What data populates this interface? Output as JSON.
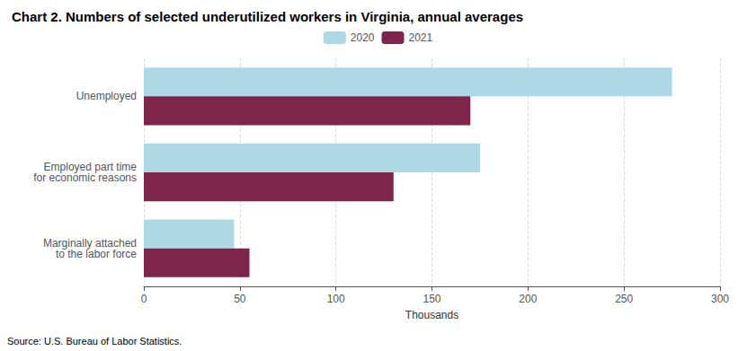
{
  "chart_data": {
    "type": "bar",
    "title": "Chart 2. Numbers of selected underutilized workers in Virginia, annual averages",
    "categories": [
      "Unemployed",
      "Employed part time\nfor economic reasons",
      "Marginally attached\nto the labor force"
    ],
    "series": [
      {
        "name": "2020",
        "color": "#ADD8E6",
        "values": [
          275,
          175,
          47
        ]
      },
      {
        "name": "2021",
        "color": "#80254A",
        "values": [
          170,
          130,
          55
        ]
      }
    ],
    "orientation": "horizontal",
    "xlabel": "Thousands",
    "xlim": [
      0,
      300
    ],
    "xticks": [
      0,
      50,
      100,
      150,
      200,
      250,
      300
    ],
    "grid": true,
    "legend": "top",
    "annotations": [
      "Source: U.S. Bureau of Labor Statistics."
    ]
  }
}
